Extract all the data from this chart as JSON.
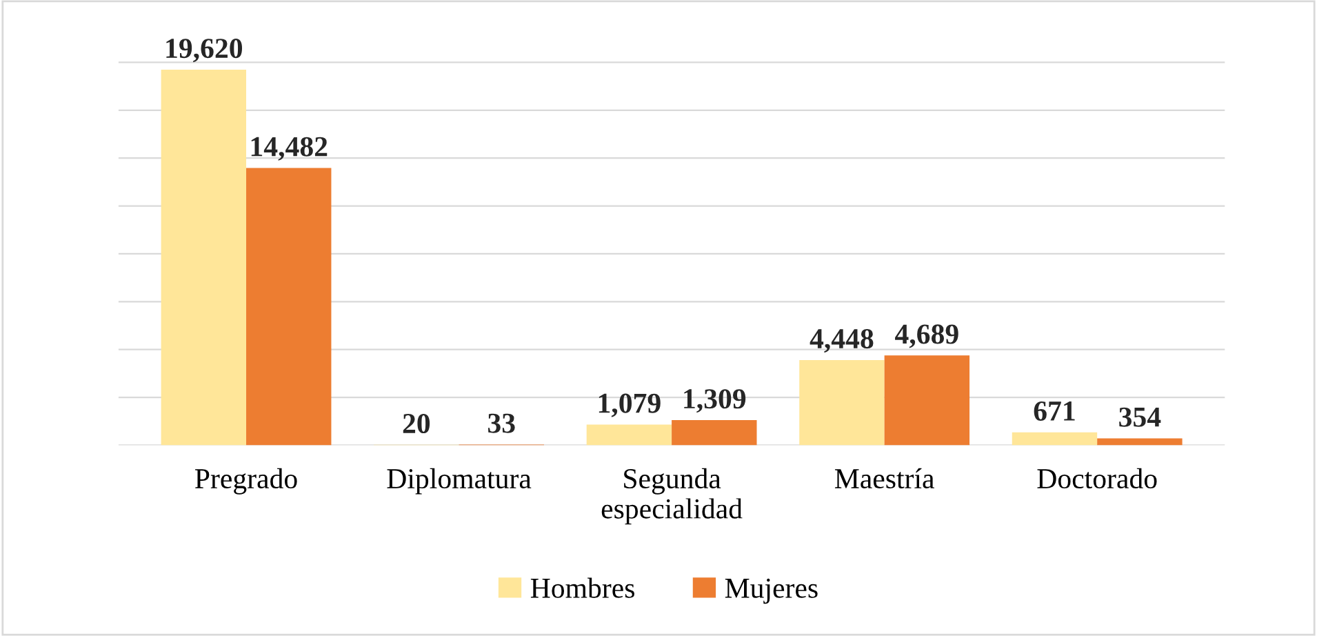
{
  "chart_data": {
    "type": "bar",
    "categories": [
      "Pregrado",
      "Diplomatura",
      "Segunda\nespecialidad",
      "Maestría",
      "Doctorado"
    ],
    "series": [
      {
        "name": "Hombres",
        "color": "#ffe699",
        "values": [
          19620,
          20,
          1079,
          4448,
          671
        ],
        "value_labels": [
          "19,620",
          "20",
          "1,079",
          "4,448",
          "671"
        ]
      },
      {
        "name": "Mujeres",
        "color": "#ed7d31",
        "values": [
          14482,
          33,
          1309,
          4689,
          354
        ],
        "value_labels": [
          "14,482",
          "33",
          "1,309",
          "4,689",
          "354"
        ]
      }
    ],
    "grid": "y",
    "tick_labels": "x",
    "legend": "bottom"
  }
}
